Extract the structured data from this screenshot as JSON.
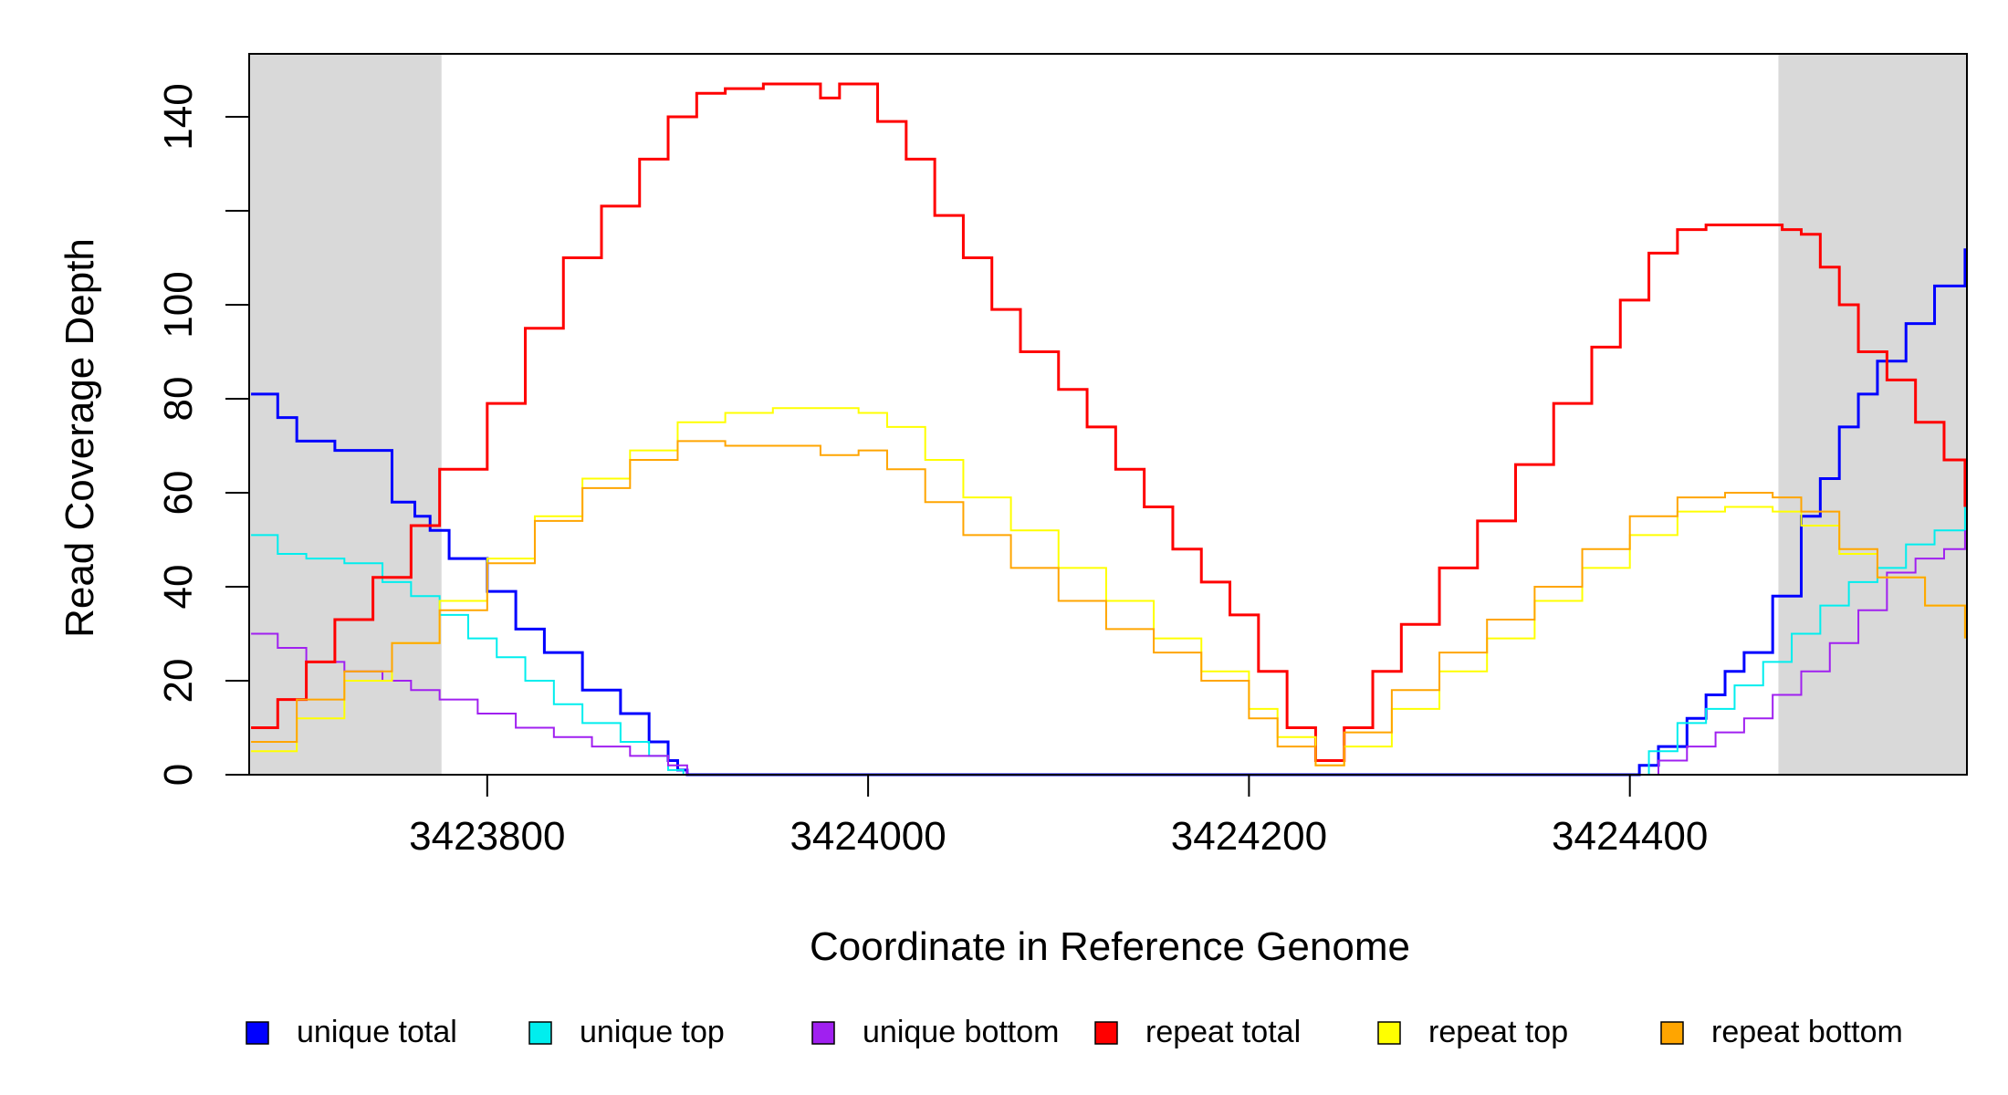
{
  "chart_data": {
    "type": "line",
    "xlabel": "Coordinate in Reference Genome",
    "ylabel": "Read Coverage Depth",
    "xlim": [
      3423675,
      3424577
    ],
    "ylim": [
      0,
      150
    ],
    "x_ticks": [
      3423800,
      3424000,
      3424200,
      3424400
    ],
    "y_ticks": [
      0,
      20,
      40,
      60,
      80,
      100,
      120,
      140
    ],
    "y_tick_labels": [
      "0",
      "20",
      "40",
      "60",
      "80",
      "100",
      "",
      "140"
    ],
    "shaded_regions": [
      [
        3423675,
        3423776
      ],
      [
        3424478,
        3424577
      ]
    ],
    "shade_color": "#d9d9d9",
    "grid": false,
    "legend_position": "bottom",
    "series": [
      {
        "name": "unique total",
        "color": "#0000ff",
        "width": 3,
        "x": [
          3423676,
          3423690,
          3423700,
          3423720,
          3423750,
          3423762,
          3423770,
          3423780,
          3423800,
          3423815,
          3423830,
          3423850,
          3423870,
          3423885,
          3423895,
          3423900,
          3423905,
          3424230,
          3424400,
          3424405,
          3424415,
          3424430,
          3424440,
          3424450,
          3424460,
          3424475,
          3424490,
          3424500,
          3424510,
          3424520,
          3424530,
          3424545,
          3424560,
          3424576
        ],
        "y": [
          81,
          76,
          71,
          69,
          58,
          55,
          52,
          46,
          39,
          31,
          26,
          18,
          13,
          7,
          3,
          1,
          0,
          0,
          0,
          2,
          6,
          12,
          17,
          22,
          26,
          38,
          55,
          63,
          74,
          81,
          88,
          96,
          104,
          112
        ]
      },
      {
        "name": "unique top",
        "color": "#00eeee",
        "width": 2,
        "x": [
          3423676,
          3423690,
          3423705,
          3423725,
          3423745,
          3423760,
          3423775,
          3423790,
          3423805,
          3423820,
          3423835,
          3423850,
          3423870,
          3423885,
          3423895,
          3423903,
          3424230,
          3424400,
          3424410,
          3424425,
          3424440,
          3424455,
          3424470,
          3424485,
          3424500,
          3424515,
          3424530,
          3424545,
          3424560,
          3424576
        ],
        "y": [
          51,
          47,
          46,
          45,
          41,
          38,
          34,
          29,
          25,
          20,
          15,
          11,
          7,
          4,
          1,
          0,
          0,
          0,
          5,
          11,
          14,
          19,
          24,
          30,
          36,
          41,
          44,
          49,
          52,
          58
        ]
      },
      {
        "name": "unique bottom",
        "color": "#a020f0",
        "width": 2,
        "x": [
          3423676,
          3423690,
          3423705,
          3423725,
          3423745,
          3423760,
          3423775,
          3423795,
          3423815,
          3423835,
          3423855,
          3423875,
          3423895,
          3423905,
          3424230,
          3424405,
          3424415,
          3424430,
          3424445,
          3424460,
          3424475,
          3424490,
          3424505,
          3424520,
          3424535,
          3424550,
          3424565,
          3424576
        ],
        "y": [
          30,
          27,
          24,
          22,
          20,
          18,
          16,
          13,
          10,
          8,
          6,
          4,
          2,
          0,
          0,
          0,
          3,
          6,
          9,
          12,
          17,
          22,
          28,
          35,
          43,
          46,
          48,
          52
        ]
      },
      {
        "name": "repeat total",
        "color": "#ff0000",
        "width": 3,
        "x": [
          3423676,
          3423690,
          3423705,
          3423720,
          3423740,
          3423760,
          3423775,
          3423800,
          3423820,
          3423840,
          3423860,
          3423880,
          3423895,
          3423910,
          3423925,
          3423945,
          3423965,
          3423975,
          3423985,
          3423995,
          3424005,
          3424020,
          3424035,
          3424050,
          3424065,
          3424080,
          3424100,
          3424115,
          3424130,
          3424145,
          3424160,
          3424175,
          3424190,
          3424205,
          3424220,
          3424235,
          3424250,
          3424265,
          3424280,
          3424300,
          3424320,
          3424340,
          3424360,
          3424380,
          3424395,
          3424410,
          3424425,
          3424440,
          3424455,
          3424465,
          3424480,
          3424490,
          3424500,
          3424510,
          3424520,
          3424535,
          3424550,
          3424565,
          3424576
        ],
        "y": [
          10,
          16,
          24,
          33,
          42,
          53,
          65,
          79,
          95,
          110,
          121,
          131,
          140,
          145,
          146,
          147,
          147,
          144,
          147,
          147,
          139,
          131,
          119,
          110,
          99,
          90,
          82,
          74,
          65,
          57,
          48,
          41,
          34,
          22,
          10,
          3,
          10,
          22,
          32,
          44,
          54,
          66,
          79,
          91,
          101,
          111,
          116,
          117,
          117,
          117,
          116,
          115,
          108,
          100,
          90,
          84,
          75,
          67,
          57
        ]
      },
      {
        "name": "repeat top",
        "color": "#ffff00",
        "width": 2,
        "x": [
          3423676,
          3423700,
          3423725,
          3423750,
          3423775,
          3423800,
          3423825,
          3423850,
          3423875,
          3423900,
          3423925,
          3423950,
          3423975,
          3423995,
          3424010,
          3424030,
          3424050,
          3424075,
          3424100,
          3424125,
          3424150,
          3424175,
          3424200,
          3424215,
          3424235,
          3424250,
          3424275,
          3424300,
          3424325,
          3424350,
          3424375,
          3424400,
          3424425,
          3424450,
          3424475,
          3424490,
          3424510,
          3424530,
          3424555,
          3424576
        ],
        "y": [
          5,
          12,
          20,
          28,
          37,
          46,
          55,
          63,
          69,
          75,
          77,
          78,
          78,
          77,
          74,
          67,
          59,
          52,
          44,
          37,
          29,
          22,
          14,
          8,
          2,
          6,
          14,
          22,
          29,
          37,
          44,
          51,
          56,
          57,
          56,
          53,
          47,
          42,
          36,
          29
        ]
      },
      {
        "name": "repeat bottom",
        "color": "#ffa500",
        "width": 2,
        "x": [
          3423676,
          3423700,
          3423725,
          3423750,
          3423775,
          3423800,
          3423825,
          3423850,
          3423875,
          3423900,
          3423925,
          3423950,
          3423975,
          3423995,
          3424010,
          3424030,
          3424050,
          3424075,
          3424100,
          3424125,
          3424150,
          3424175,
          3424200,
          3424215,
          3424235,
          3424250,
          3424275,
          3424300,
          3424325,
          3424350,
          3424375,
          3424400,
          3424425,
          3424450,
          3424475,
          3424490,
          3424510,
          3424530,
          3424555,
          3424576
        ],
        "y": [
          7,
          16,
          22,
          28,
          35,
          45,
          54,
          61,
          67,
          71,
          70,
          70,
          68,
          69,
          65,
          58,
          51,
          44,
          37,
          31,
          26,
          20,
          12,
          6,
          2,
          9,
          18,
          26,
          33,
          40,
          48,
          55,
          59,
          60,
          59,
          56,
          48,
          42,
          36,
          29
        ]
      }
    ]
  }
}
